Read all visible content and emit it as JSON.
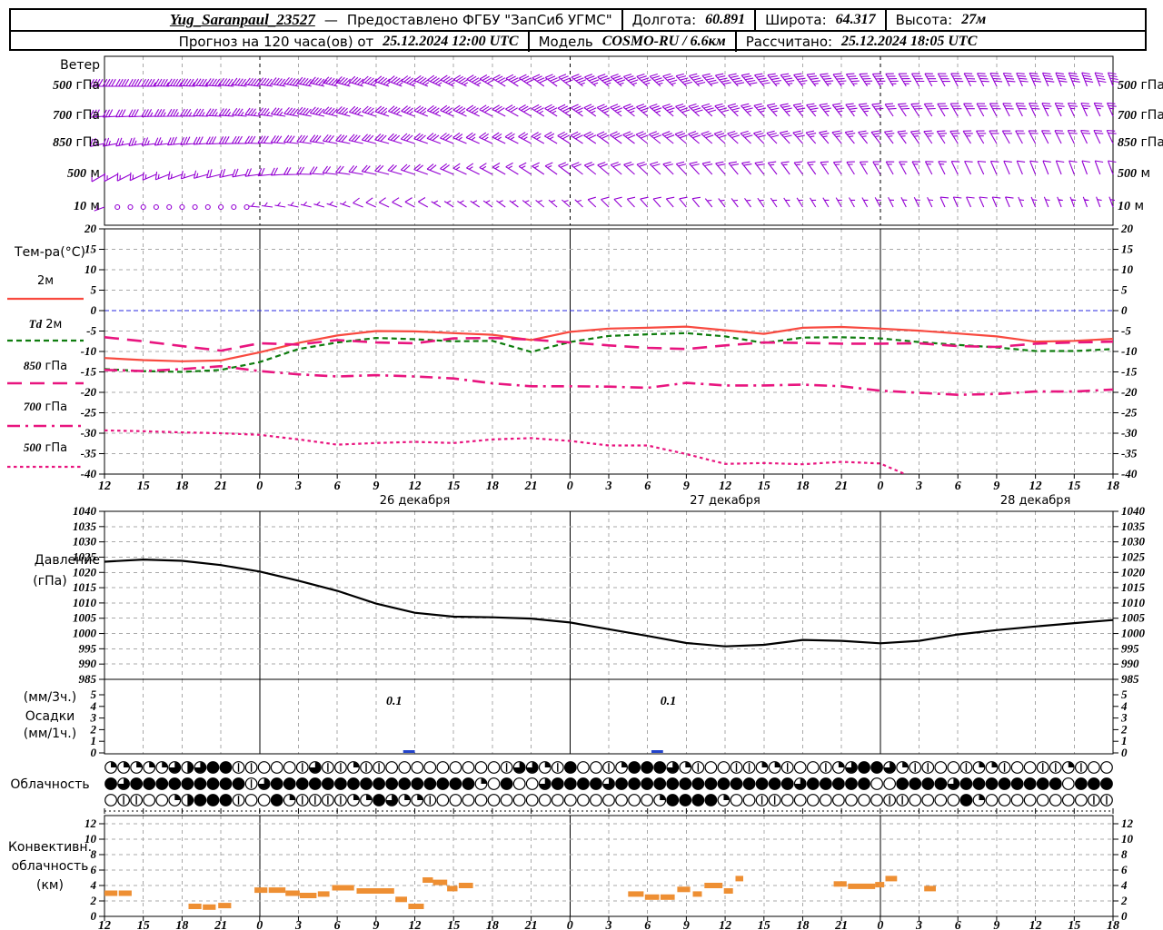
{
  "header": {
    "row1": [
      {
        "text": "Yug_Saranpaul_23527",
        "style": "station"
      },
      {
        "text": "—",
        "style": "plain"
      },
      {
        "text": "Предоставлено ФГБУ \"ЗапСиб УГМС\"",
        "style": "plain"
      },
      {
        "text": "|",
        "style": "sep"
      },
      {
        "text": "Долгота:",
        "style": "plain"
      },
      {
        "text": "60.891",
        "style": "value"
      },
      {
        "text": "|",
        "style": "sep"
      },
      {
        "text": "Широта:",
        "style": "plain"
      },
      {
        "text": "64.317",
        "style": "value"
      },
      {
        "text": "|",
        "style": "sep"
      },
      {
        "text": "Высота:",
        "style": "plain"
      },
      {
        "text": "27м",
        "style": "value"
      }
    ],
    "row2": [
      {
        "text": "Прогноз на 120 часа(ов) от",
        "style": "plain"
      },
      {
        "text": "25.12.2024 12:00 UTC",
        "style": "value"
      },
      {
        "text": "|",
        "style": "sep"
      },
      {
        "text": "Модель",
        "style": "plain"
      },
      {
        "text": "COSMO-RU / 6.6км",
        "style": "value"
      },
      {
        "text": "|",
        "style": "sep"
      },
      {
        "text": "Рассчитано:",
        "style": "plain"
      },
      {
        "text": "25.12.2024 18:05 UTC",
        "style": "value"
      }
    ]
  },
  "labels": {
    "wind_title": "Ветер",
    "temp_title": "Тем-ра(°C)",
    "pressure_title_1": "Давление",
    "pressure_title_2": "(гПа)",
    "precip_title_1": "(мм/3ч.)",
    "precip_title_2": "Осадки",
    "precip_title_3": "(мм/1ч.)",
    "cloud_title": "Облачность",
    "conv_title_1": "Конвективн.",
    "conv_title_2": "облачность",
    "conv_title_3": "(км)"
  },
  "time_axis": {
    "step_hours": 3,
    "hours": [
      "12",
      "15",
      "18",
      "21",
      "0",
      "3",
      "6",
      "9",
      "12",
      "15",
      "18",
      "21",
      "0",
      "3",
      "6",
      "9",
      "12",
      "15",
      "18",
      "21",
      "0",
      "3",
      "6",
      "9",
      "12",
      "15",
      "18"
    ],
    "midnights_t": [
      12,
      36,
      60
    ],
    "dates": [
      {
        "label": "26 декабря",
        "t": 24
      },
      {
        "label": "27 декабря",
        "t": 48
      },
      {
        "label": "28 декабря",
        "t": 72
      }
    ]
  },
  "chart_data": [
    {
      "type": "wind-barbs",
      "panel": "wind",
      "name": "Ветер",
      "color": "#9400d3",
      "levels": [
        {
          "label": {
            "value": "500",
            "unit": "гПа"
          },
          "dirs": [
            270,
            270,
            272,
            274,
            277,
            280,
            284,
            288,
            292,
            296,
            300,
            304,
            308,
            310,
            312,
            315,
            318,
            320,
            322,
            325,
            328,
            330,
            332,
            334,
            336,
            338,
            340
          ],
          "speeds_kt": [
            40,
            42,
            45,
            45,
            46,
            48,
            48,
            46,
            45,
            45,
            42,
            40,
            42,
            45,
            46,
            48,
            48,
            48,
            46,
            45,
            45,
            42,
            40,
            40,
            38,
            38,
            38
          ]
        },
        {
          "label": {
            "value": "700",
            "unit": "гПа"
          },
          "dirs": [
            266,
            268,
            270,
            273,
            276,
            280,
            284,
            288,
            291,
            294,
            297,
            300,
            304,
            307,
            310,
            312,
            315,
            317,
            320,
            322,
            325,
            327,
            330,
            332,
            334,
            335,
            336
          ],
          "speeds_kt": [
            30,
            32,
            34,
            35,
            36,
            38,
            38,
            36,
            35,
            34,
            32,
            32,
            34,
            35,
            36,
            38,
            38,
            36,
            35,
            34,
            32,
            30,
            30,
            28,
            28,
            26,
            26
          ]
        },
        {
          "label": {
            "value": "850",
            "unit": "гПа"
          },
          "dirs": [
            258,
            261,
            264,
            268,
            272,
            276,
            280,
            284,
            288,
            292,
            295,
            298,
            302,
            305,
            308,
            310,
            312,
            315,
            318,
            320,
            322,
            325,
            328,
            330,
            332,
            334,
            335
          ],
          "speeds_kt": [
            24,
            26,
            28,
            30,
            30,
            32,
            32,
            30,
            28,
            28,
            26,
            26,
            28,
            30,
            30,
            32,
            32,
            30,
            28,
            26,
            26,
            24,
            24,
            22,
            22,
            20,
            20
          ]
        },
        {
          "label": {
            "value": "500",
            "unit": "м"
          },
          "dirs": [
            240,
            245,
            250,
            256,
            262,
            269,
            276,
            282,
            288,
            293,
            298,
            303,
            307,
            310,
            313,
            316,
            319,
            322,
            324,
            327,
            330,
            332,
            334,
            336,
            338,
            339,
            340
          ],
          "speeds_kt": [
            12,
            14,
            16,
            18,
            20,
            22,
            22,
            20,
            18,
            18,
            16,
            16,
            18,
            20,
            22,
            22,
            20,
            18,
            16,
            16,
            14,
            14,
            12,
            12,
            10,
            10,
            10
          ]
        },
        {
          "label": {
            "value": "10",
            "unit": "м"
          },
          "dirs": [
            250,
            260,
            270,
            270,
            275,
            282,
            288,
            294,
            298,
            302,
            305,
            308,
            312,
            315,
            318,
            320,
            322,
            325,
            328,
            330,
            332,
            334,
            336,
            337,
            338,
            339,
            340
          ],
          "speeds_kt": [
            3,
            0,
            0,
            0,
            3,
            5,
            7,
            8,
            8,
            7,
            6,
            5,
            7,
            8,
            8,
            8,
            7,
            6,
            5,
            5,
            6,
            7,
            8,
            8,
            7,
            6,
            6
          ]
        }
      ]
    },
    {
      "type": "line",
      "panel": "temperature",
      "name": "Тем-ра(°C)",
      "ylim": [
        -40,
        20
      ],
      "ytick_step": 5,
      "zero_line_color": "#2a2ae0",
      "grid": true,
      "series": [
        {
          "id": "t2m",
          "label_num": "",
          "label": "2м",
          "color": "#f8493f",
          "dash": "",
          "width": 2.2,
          "values": [
            -11.6,
            -12.1,
            -12.4,
            -12.2,
            -10.2,
            -7.9,
            -6.1,
            -5.0,
            -5.1,
            -5.5,
            -5.9,
            -7.2,
            -5.2,
            -4.4,
            -4.2,
            -3.9,
            -4.8,
            -5.7,
            -4.2,
            -4.0,
            -4.4,
            -4.9,
            -5.6,
            -6.3,
            -7.6,
            -7.4,
            -6.9
          ]
        },
        {
          "id": "td2m",
          "label_num": "Td",
          "label": "2м",
          "color": "#0f7d0f",
          "dash": "6 4",
          "width": 2.2,
          "values": [
            -14.3,
            -14.8,
            -15.0,
            -14.5,
            -12.6,
            -9.4,
            -7.8,
            -6.7,
            -7.0,
            -7.5,
            -7.4,
            -10.1,
            -7.7,
            -6.2,
            -5.8,
            -5.5,
            -6.3,
            -7.9,
            -6.6,
            -6.5,
            -6.8,
            -7.7,
            -8.4,
            -9.0,
            -9.9,
            -9.9,
            -9.4
          ]
        },
        {
          "id": "t850",
          "label_num": "850",
          "label": "гПа",
          "color": "#e8157f",
          "dash": "16 9",
          "width": 2.6,
          "values": [
            -6.5,
            -7.5,
            -8.7,
            -9.8,
            -8.0,
            -8.3,
            -7.2,
            -7.8,
            -8.0,
            -6.8,
            -6.7,
            -7.1,
            -7.8,
            -8.5,
            -9.1,
            -9.4,
            -8.5,
            -7.8,
            -7.9,
            -8.1,
            -8.1,
            -8.0,
            -8.7,
            -8.9,
            -8.1,
            -7.8,
            -7.6
          ]
        },
        {
          "id": "t700",
          "label_num": "700",
          "label": "гПа",
          "color": "#e8157f",
          "dash": "14 6 3 6",
          "width": 2.6,
          "values": [
            -14.5,
            -14.8,
            -14.3,
            -13.6,
            -14.8,
            -15.6,
            -16.1,
            -15.8,
            -16.1,
            -16.6,
            -17.8,
            -18.5,
            -18.5,
            -18.6,
            -18.9,
            -17.7,
            -18.3,
            -18.3,
            -18.1,
            -18.5,
            -19.6,
            -20.1,
            -20.6,
            -20.4,
            -19.8,
            -19.8,
            -19.3
          ]
        },
        {
          "id": "t500",
          "label_num": "500",
          "label": "гПа",
          "color": "#e8157f",
          "dash": "3.5 3.5",
          "width": 2.2,
          "values": [
            -29.3,
            -29.5,
            -29.8,
            -30.0,
            -30.4,
            -31.5,
            -32.8,
            -32.4,
            -32.1,
            -32.4,
            -31.5,
            -31.2,
            -31.9,
            -33.0,
            -33.0,
            -35.1,
            -37.5,
            -37.3,
            -37.6,
            -37.0,
            -37.4,
            -41.5,
            null,
            null,
            null,
            null,
            null
          ]
        }
      ]
    },
    {
      "type": "line",
      "panel": "pressure",
      "name": "Давление (гПа)",
      "ylim": [
        985,
        1040
      ],
      "ytick_step": 5,
      "grid": true,
      "series": [
        {
          "id": "pressure",
          "label": "Давление",
          "color": "#000000",
          "dash": "",
          "width": 2.2,
          "values": [
            1023.5,
            1024.2,
            1023.8,
            1022.4,
            1020.3,
            1017.3,
            1014.0,
            1009.8,
            1006.8,
            1005.5,
            1005.3,
            1004.9,
            1003.6,
            1001.4,
            999.2,
            996.9,
            995.8,
            996.3,
            997.9,
            997.6,
            996.8,
            997.6,
            999.7,
            1001.1,
            1002.3,
            1003.4,
            1004.4
          ]
        }
      ]
    },
    {
      "type": "bar",
      "panel": "precipitation",
      "name": "Осадки (мм/3ч., мм/1ч.)",
      "ylim": [
        0,
        5
      ],
      "ytick_step": 1,
      "color": "#2243cb",
      "bars": [
        {
          "t0": 23.1,
          "t1": 24.0,
          "value": 0.1,
          "label": "0.1",
          "label_t": 22.4
        },
        {
          "t0": 42.3,
          "t1": 43.2,
          "value": 0.1,
          "label": "0.1",
          "label_t": 43.6
        }
      ]
    },
    {
      "type": "symbols",
      "panel": "cloudiness",
      "name": "Облачность",
      "symbol": "cloud-cover-okta",
      "rows": [
        {
          "oktas": [
            2,
            2,
            2,
            2,
            2,
            6,
            4,
            6,
            8,
            8,
            1,
            1,
            0,
            0,
            0,
            1,
            6,
            1,
            1,
            2,
            1,
            1,
            0,
            0,
            0,
            0,
            0,
            0,
            0,
            0,
            0,
            1,
            6,
            6,
            2,
            1,
            8,
            0,
            0,
            1,
            2,
            8,
            8,
            8,
            6,
            2,
            1,
            0,
            0,
            1,
            1,
            2,
            2,
            1,
            0,
            0,
            1,
            2,
            6,
            8,
            8,
            6,
            2,
            1,
            1,
            0,
            0,
            1,
            2,
            2,
            1,
            0,
            0,
            1,
            1,
            2,
            1,
            0,
            0
          ]
        },
        {
          "oktas": [
            8,
            6,
            8,
            8,
            8,
            8,
            8,
            8,
            8,
            8,
            8,
            1,
            6,
            8,
            8,
            8,
            8,
            8,
            8,
            8,
            8,
            8,
            8,
            8,
            8,
            8,
            8,
            8,
            8,
            2,
            0,
            8,
            0,
            0,
            6,
            8,
            8,
            8,
            8,
            6,
            8,
            8,
            8,
            8,
            8,
            8,
            8,
            8,
            8,
            8,
            8,
            8,
            8,
            8,
            6,
            8,
            8,
            8,
            8,
            8,
            0,
            0,
            8,
            8,
            8,
            8,
            6,
            8,
            8,
            8,
            8,
            8,
            8,
            8,
            8,
            0,
            8,
            8,
            8
          ]
        },
        {
          "oktas": [
            0,
            1,
            1,
            0,
            0,
            2,
            4,
            8,
            8,
            8,
            1,
            0,
            0,
            8,
            2,
            1,
            1,
            1,
            1,
            2,
            2,
            8,
            6,
            2,
            2,
            1,
            0,
            0,
            0,
            0,
            0,
            0,
            0,
            0,
            0,
            0,
            0,
            0,
            0,
            0,
            0,
            0,
            0,
            2,
            8,
            8,
            8,
            8,
            2,
            0,
            0,
            1,
            1,
            0,
            0,
            0,
            0,
            0,
            0,
            0,
            0,
            1,
            1,
            0,
            0,
            0,
            0,
            8,
            2,
            0,
            0,
            0,
            0,
            0,
            0,
            0,
            0,
            1,
            1
          ]
        }
      ]
    },
    {
      "type": "bar",
      "panel": "convective",
      "name": "Конвективная облачность (км)",
      "ylim": [
        0,
        12
      ],
      "ytick_step": 2,
      "color": "#ee8f33",
      "bars": [
        [
          0,
          1.0,
          3.0
        ],
        [
          1.1,
          2.1,
          3.0
        ],
        [
          6.5,
          7.5,
          1.3
        ],
        [
          7.6,
          8.6,
          1.2
        ],
        [
          8.8,
          9.8,
          1.4
        ],
        [
          11.6,
          12.6,
          3.4
        ],
        [
          12.7,
          14.0,
          3.4
        ],
        [
          14.0,
          15.1,
          3.0
        ],
        [
          15.1,
          16.4,
          2.7
        ],
        [
          16.5,
          17.4,
          2.9
        ],
        [
          17.6,
          19.3,
          3.7
        ],
        [
          19.5,
          22.4,
          3.3
        ],
        [
          22.5,
          23.4,
          2.2
        ],
        [
          23.5,
          24.7,
          1.3
        ],
        [
          24.6,
          25.4,
          4.7
        ],
        [
          25.4,
          26.5,
          4.4
        ],
        [
          26.5,
          27.3,
          3.6
        ],
        [
          27.4,
          28.5,
          4.0
        ],
        [
          40.5,
          41.7,
          2.9
        ],
        [
          41.8,
          42.9,
          2.5
        ],
        [
          43.0,
          44.1,
          2.5
        ],
        [
          44.3,
          45.3,
          3.5
        ],
        [
          45.5,
          46.2,
          2.9
        ],
        [
          46.4,
          47.8,
          4.0
        ],
        [
          47.9,
          48.6,
          3.3
        ],
        [
          48.8,
          49.4,
          4.9
        ],
        [
          56.4,
          57.4,
          4.2
        ],
        [
          57.5,
          59.6,
          3.9
        ],
        [
          59.6,
          60.3,
          4.1
        ],
        [
          60.4,
          61.3,
          4.9
        ],
        [
          63.4,
          64.3,
          3.6
        ]
      ]
    }
  ]
}
